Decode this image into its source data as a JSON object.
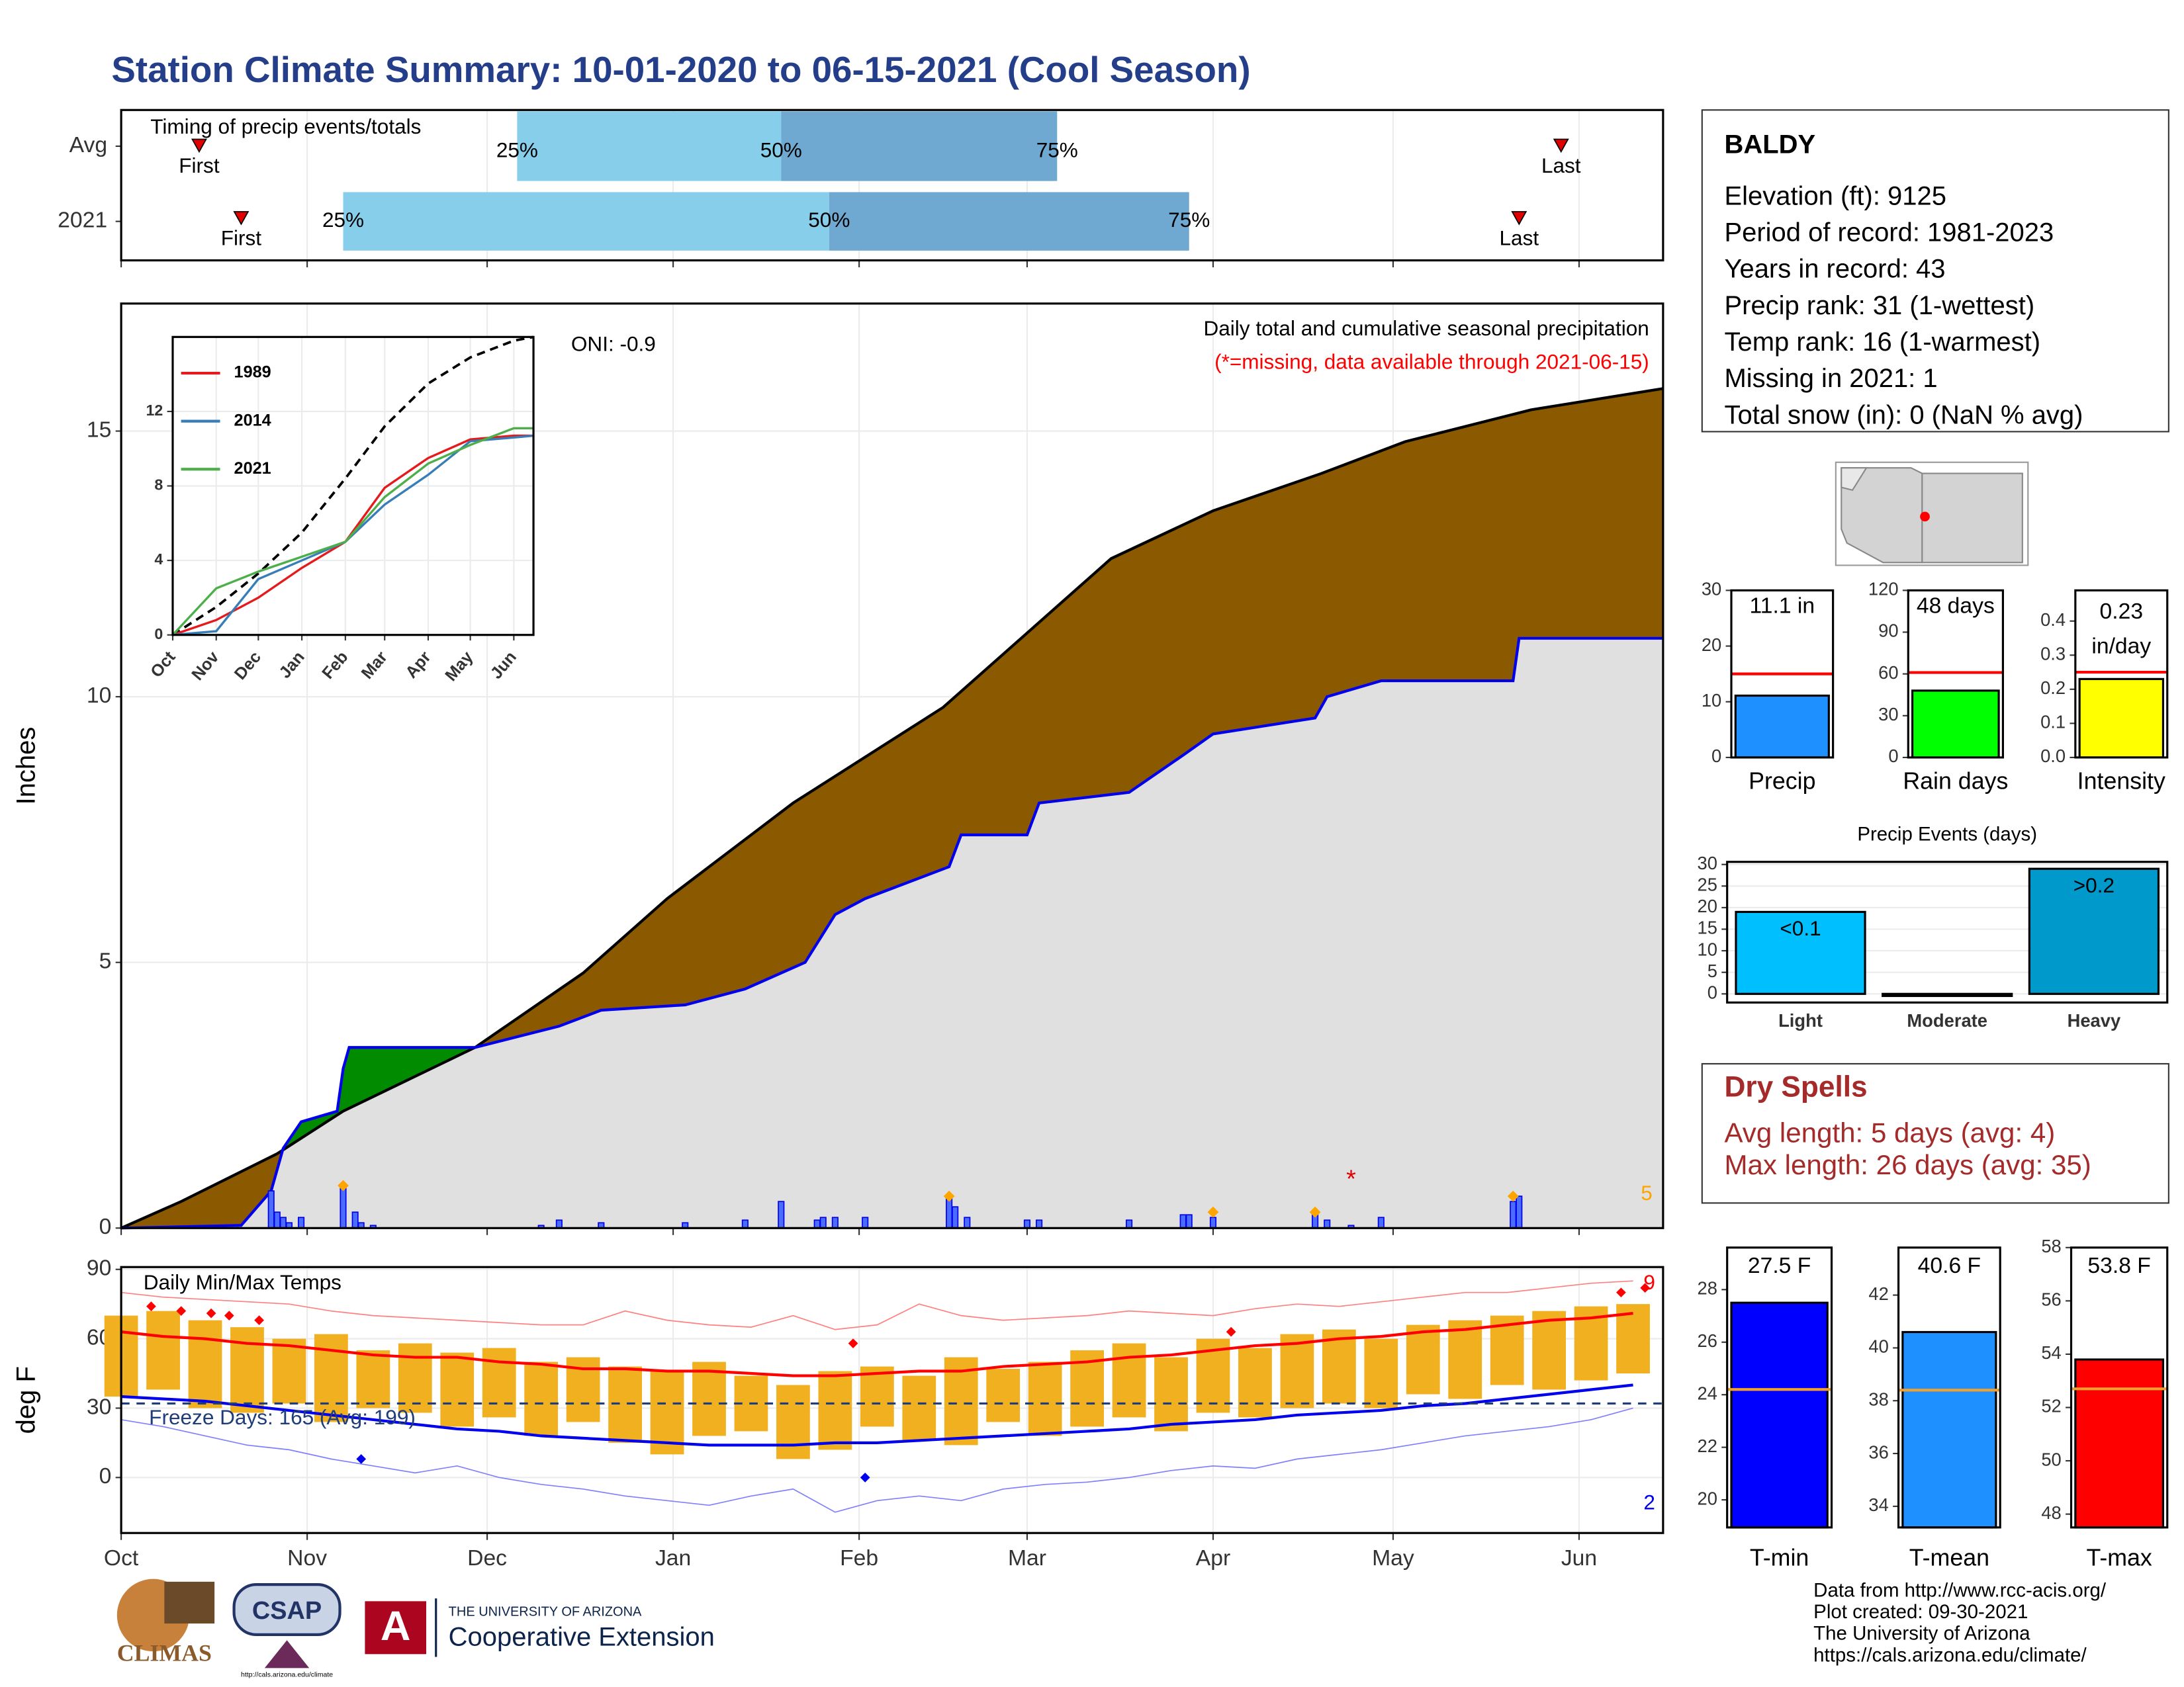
{
  "title": "Station Climate Summary: 10-01-2020 to 06-15-2021 (Cool Season)",
  "station": {
    "name": "BALDY",
    "lines": [
      "Elevation (ft): 9125",
      "Period of record: 1981-2023",
      "Years in record: 43",
      "Precip rank: 31 (1-wettest)",
      "Temp rank: 16 (1-warmest)",
      "Missing in 2021: 1",
      "Total snow (in): 0 (NaN % avg)"
    ]
  },
  "dry_spells": {
    "title": "Dry Spells",
    "lines": [
      "Avg length: 5 days (avg: 4)",
      "Max length: 26 days (avg: 35)"
    ]
  },
  "footer": {
    "lines": [
      "Data from http://www.rcc-acis.org/",
      "Plot created: 09-30-2021",
      "The University of Arizona",
      "https://cals.arizona.edu/climate/"
    ]
  },
  "logos": {
    "climas": "CLIMAS",
    "csap": "CSAP",
    "csap_url": "http://cals.arizona.edu/climate",
    "ua_small": "THE UNIVERSITY OF ARIZONA",
    "ua_large": "Cooperative Extension"
  },
  "chart_data": [
    {
      "type": "timing",
      "title": "Timing of precip events/totals",
      "xlim": [
        0,
        257
      ],
      "xticks": [
        0,
        31,
        61,
        92,
        123,
        151,
        182,
        212,
        243
      ],
      "labels": {
        "first": "First",
        "p25": "25%",
        "p50": "50%",
        "p75": "75%",
        "last": "Last"
      },
      "colors": {
        "lower": "#87ceeb",
        "upper": "#6fa8d0",
        "marker": "#e00000"
      },
      "rows": [
        {
          "name": "Avg",
          "first": 13,
          "p25": 66,
          "p50": 110,
          "p75": 156,
          "last": 240
        },
        {
          "name": "2021",
          "first": 20,
          "p25": 37,
          "p50": 118,
          "p75": 178,
          "last": 233
        }
      ]
    },
    {
      "type": "cumulative_precip",
      "title": "Daily total and cumulative seasonal precipitation",
      "subtitle": "(*=missing, data available through 2021-06-15)",
      "annotation": "ONI: -0.9",
      "y_label": "Inches",
      "xlim": [
        0,
        257
      ],
      "xticks": [
        0,
        31,
        61,
        92,
        123,
        151,
        182,
        212,
        243
      ],
      "ylim": [
        0,
        17.4
      ],
      "yticks": [
        0,
        5,
        10,
        15
      ],
      "grid": true,
      "fills": {
        "below": "#8b5a00",
        "above": "#008b00",
        "base": "#e0e0e0"
      },
      "average": {
        "color": "#000000",
        "x": [
          0,
          10,
          26,
          37,
          59,
          77,
          91,
          112,
          137,
          151,
          165,
          182,
          200,
          214,
          235,
          257
        ],
        "values": [
          0,
          0.5,
          1.4,
          2.2,
          3.4,
          4.8,
          6.2,
          8.0,
          9.8,
          11.2,
          12.6,
          13.5,
          14.2,
          14.8,
          15.4,
          15.8
        ]
      },
      "current": {
        "color": "#0000ee",
        "x": [
          0,
          20,
          25,
          27,
          30,
          36,
          37,
          38,
          59,
          73,
          80,
          94,
          104,
          114,
          119,
          124,
          138,
          140,
          151,
          153,
          168,
          177,
          182,
          199,
          201,
          210,
          232,
          233,
          257
        ],
        "values": [
          0,
          0.05,
          0.7,
          1.5,
          2.0,
          2.2,
          3.0,
          3.4,
          3.4,
          3.8,
          4.1,
          4.2,
          4.5,
          5.0,
          5.9,
          6.2,
          6.8,
          7.4,
          7.4,
          8.0,
          8.2,
          8.9,
          9.3,
          9.6,
          10.0,
          10.3,
          10.3,
          11.1,
          11.1
        ]
      },
      "daily": {
        "color": "#0000ee",
        "fill": "#4a6cff",
        "x": [
          25,
          26,
          27,
          28,
          30,
          37,
          39,
          40,
          42,
          70,
          73,
          80,
          94,
          104,
          110,
          116,
          117,
          119,
          124,
          138,
          139,
          141,
          151,
          153,
          168,
          177,
          178,
          182,
          199,
          201,
          205,
          210,
          232,
          233
        ],
        "values": [
          0.7,
          0.3,
          0.2,
          0.1,
          0.2,
          0.8,
          0.3,
          0.1,
          0.05,
          0.05,
          0.15,
          0.1,
          0.1,
          0.15,
          0.5,
          0.15,
          0.2,
          0.2,
          0.2,
          0.55,
          0.4,
          0.2,
          0.15,
          0.15,
          0.15,
          0.25,
          0.25,
          0.2,
          0.25,
          0.15,
          0.05,
          0.2,
          0.5,
          0.6
        ]
      },
      "extremes": {
        "color": "#ffa500",
        "count": 5,
        "x": [
          37,
          138,
          182,
          199,
          232
        ],
        "values": [
          0.8,
          0.6,
          0.3,
          0.3,
          0.6
        ]
      },
      "missing": {
        "color": "#e00000",
        "label": "*",
        "x": [
          205
        ],
        "values": [
          1.0
        ]
      }
    },
    {
      "type": "line",
      "xlim": [
        0,
        257
      ],
      "xticks": [
        {
          "value": 0,
          "label": "Oct"
        },
        {
          "value": 31,
          "label": "Nov"
        },
        {
          "value": 61,
          "label": "Dec"
        },
        {
          "value": 92,
          "label": "Jan"
        },
        {
          "value": 123,
          "label": "Feb"
        },
        {
          "value": 151,
          "label": "Mar"
        },
        {
          "value": 182,
          "label": "Apr"
        },
        {
          "value": 212,
          "label": "May"
        },
        {
          "value": 243,
          "label": "Jun"
        }
      ],
      "ylim": [
        0,
        16
      ],
      "yticks": [
        0,
        4,
        8,
        12
      ],
      "x": [
        0,
        31,
        61,
        92,
        123,
        151,
        182,
        212,
        243,
        257
      ],
      "average": {
        "color": "#000000",
        "values": [
          0,
          1.5,
          3.3,
          5.5,
          8.4,
          11.2,
          13.5,
          14.9,
          15.8,
          16
        ]
      },
      "series": [
        {
          "name": "1989",
          "color": "#e41a1c",
          "values": [
            0,
            0.8,
            2.0,
            3.6,
            5.0,
            7.9,
            9.5,
            10.5,
            10.7,
            10.7
          ]
        },
        {
          "name": "2014",
          "color": "#377eb8",
          "values": [
            0,
            0.2,
            3.0,
            4.0,
            5.0,
            7.0,
            8.6,
            10.4,
            10.6,
            10.7
          ]
        },
        {
          "name": "2021",
          "color": "#4daf4a",
          "values": [
            0,
            2.5,
            3.4,
            4.2,
            5.0,
            7.4,
            9.2,
            10.2,
            11.1,
            11.1
          ]
        }
      ]
    },
    {
      "type": "temperature",
      "title": "Daily Min/Max Temps",
      "annotation": "Freeze Days: 165 (Avg: 199)",
      "y_label": "deg F",
      "xlim": [
        0,
        257
      ],
      "xticks": [
        {
          "value": 0,
          "label": "Oct"
        },
        {
          "value": 31,
          "label": "Nov"
        },
        {
          "value": 61,
          "label": "Dec"
        },
        {
          "value": 92,
          "label": "Jan"
        },
        {
          "value": 123,
          "label": "Feb"
        },
        {
          "value": 151,
          "label": "Mar"
        },
        {
          "value": 182,
          "label": "Apr"
        },
        {
          "value": 212,
          "label": "May"
        },
        {
          "value": 243,
          "label": "Jun"
        }
      ],
      "ylim": [
        -24,
        91
      ],
      "yticks": [
        0,
        30,
        60,
        90
      ],
      "grid": true,
      "freeze_line": 32,
      "freeze_color": "#1f3d7a",
      "x": [
        0,
        7,
        14,
        21,
        28,
        35,
        42,
        49,
        56,
        63,
        70,
        77,
        84,
        91,
        98,
        105,
        112,
        119,
        126,
        133,
        140,
        147,
        154,
        161,
        168,
        175,
        182,
        189,
        196,
        203,
        210,
        217,
        224,
        231,
        238,
        245,
        252
      ],
      "daily_max": {
        "color": "#f0b020",
        "values": [
          70,
          72,
          68,
          65,
          60,
          62,
          55,
          58,
          54,
          56,
          50,
          52,
          48,
          46,
          50,
          44,
          40,
          46,
          48,
          44,
          52,
          47,
          50,
          55,
          58,
          52,
          60,
          56,
          62,
          64,
          60,
          66,
          68,
          70,
          72,
          74,
          75
        ]
      },
      "daily_min": {
        "color": "#f0b020",
        "values": [
          35,
          38,
          30,
          28,
          32,
          24,
          30,
          28,
          22,
          26,
          18,
          24,
          15,
          10,
          18,
          20,
          8,
          12,
          22,
          16,
          14,
          24,
          18,
          22,
          26,
          20,
          28,
          26,
          30,
          32,
          30,
          36,
          34,
          40,
          38,
          42,
          45
        ]
      },
      "avg_max": {
        "color": "#ff0000",
        "values": [
          63,
          61,
          60,
          58,
          57,
          55,
          53,
          52,
          52,
          50,
          49,
          47,
          47,
          46,
          46,
          45,
          44,
          44,
          45,
          46,
          46,
          48,
          49,
          50,
          52,
          53,
          55,
          57,
          58,
          60,
          61,
          63,
          64,
          66,
          68,
          69,
          71
        ]
      },
      "avg_min": {
        "color": "#0000ee",
        "values": [
          35,
          34,
          33,
          31,
          29,
          27,
          25,
          23,
          21,
          20,
          18,
          17,
          16,
          15,
          14,
          14,
          14,
          15,
          15,
          16,
          17,
          18,
          19,
          20,
          21,
          23,
          24,
          25,
          27,
          28,
          29,
          31,
          32,
          34,
          36,
          38,
          40
        ]
      },
      "record_max": {
        "color": "#ff8080",
        "values": [
          80,
          78,
          77,
          76,
          75,
          72,
          70,
          69,
          68,
          67,
          66,
          66,
          72,
          68,
          66,
          65,
          70,
          64,
          66,
          75,
          70,
          68,
          69,
          70,
          72,
          71,
          70,
          73,
          75,
          74,
          76,
          78,
          80,
          80,
          82,
          84,
          85
        ]
      },
      "record_min": {
        "color": "#8080ff",
        "values": [
          25,
          22,
          18,
          14,
          12,
          8,
          5,
          2,
          5,
          0,
          -3,
          -5,
          -8,
          -10,
          -12,
          -8,
          -5,
          -15,
          -10,
          -8,
          -10,
          -5,
          -3,
          -2,
          0,
          3,
          5,
          4,
          8,
          10,
          12,
          15,
          18,
          20,
          22,
          25,
          30
        ]
      },
      "record_highs": {
        "color": "#ff0000",
        "count": 9,
        "x": [
          5,
          10,
          15,
          18,
          23,
          122,
          185,
          250,
          254
        ],
        "values": [
          74,
          72,
          71,
          70,
          68,
          58,
          63,
          80,
          82
        ]
      },
      "record_lows": {
        "color": "#0000ee",
        "count": 2,
        "x": [
          40,
          124
        ],
        "values": [
          8,
          0
        ]
      }
    },
    {
      "type": "summary_bar",
      "category": "Precip",
      "value": 11.1,
      "value_label": "11.1 in",
      "average": 15,
      "average_color": "#ff0000",
      "color": "#1e90ff",
      "ylim": [
        0,
        30
      ],
      "yticks": [
        0,
        10,
        20,
        30
      ]
    },
    {
      "type": "summary_bar",
      "category": "Rain days",
      "value": 48,
      "value_label": "48 days",
      "average": 61,
      "average_color": "#ff0000",
      "color": "#00ff00",
      "ylim": [
        0,
        120
      ],
      "yticks": [
        0,
        30,
        60,
        90,
        120
      ]
    },
    {
      "type": "summary_bar",
      "category": "Intensity",
      "value": 0.23,
      "value_label": "0.23",
      "unit_label": "in/day",
      "average": 0.25,
      "average_color": "#ff0000",
      "color": "#ffff00",
      "ylim": [
        0,
        0.49
      ],
      "yticks": [
        {
          "value": 0,
          "label": "0.0"
        },
        0.1,
        0.2,
        0.3,
        0.4
      ]
    },
    {
      "type": "bar",
      "title": "Precip Events (days)",
      "categories": [
        "Light",
        "Moderate",
        "Heavy"
      ],
      "values": [
        19,
        0,
        29
      ],
      "bar_labels": [
        "<0.1",
        null,
        ">0.2"
      ],
      "colors": [
        "#00bfff",
        "#0a7fb0",
        "#0099cc"
      ],
      "ylim": [
        -2,
        30.6
      ],
      "yticks": [
        0,
        5,
        10,
        15,
        20,
        25,
        30
      ],
      "grid": true
    },
    {
      "type": "summary_bar",
      "category": "T-min",
      "value": 27.5,
      "value_label": "27.5 F",
      "average": 24.2,
      "average_color": "#f0a030",
      "color": "#0000ff",
      "ylim": [
        18.95,
        29.6
      ],
      "yticks": [
        20,
        22,
        24,
        26,
        28
      ]
    },
    {
      "type": "summary_bar",
      "category": "T-mean",
      "value": 40.6,
      "value_label": "40.6 F",
      "average": 38.4,
      "average_color": "#f0a030",
      "color": "#1e90ff",
      "ylim": [
        33.2,
        43.8
      ],
      "yticks": [
        34,
        36,
        38,
        40,
        42
      ]
    },
    {
      "type": "summary_bar",
      "category": "T-max",
      "value": 53.8,
      "value_label": "53.8 F",
      "average": 52.7,
      "average_color": "#f0a030",
      "color": "#ff0000",
      "ylim": [
        47.5,
        58
      ],
      "yticks": [
        48,
        50,
        52,
        54,
        56,
        58
      ]
    }
  ]
}
